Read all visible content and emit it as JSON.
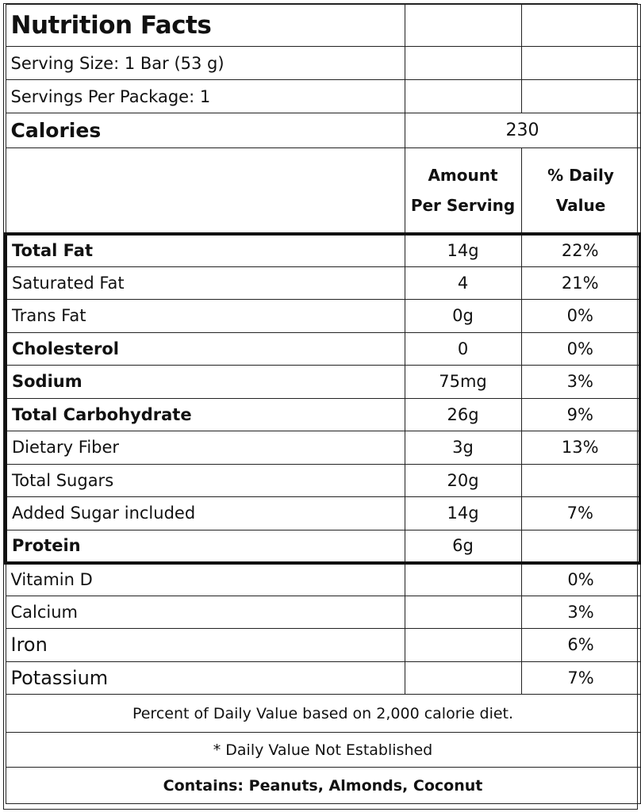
{
  "title": "Nutrition Facts",
  "serving_size": "Serving Size: 1 Bar (53 g)",
  "servings_per_package": "Servings Per Package: 1",
  "calories_label": "Calories",
  "calories_value": "230",
  "header": {
    "amount_line1": "Amount",
    "amount_line2": "Per Serving",
    "dv_line1": "% Daily",
    "dv_line2": "Value"
  },
  "nutrients": [
    {
      "name": "Total Fat",
      "amount": "14g",
      "dv": "22%",
      "bold": true
    },
    {
      "name": "Saturated Fat",
      "amount": "4",
      "dv": "21%",
      "bold": false
    },
    {
      "name": "Trans Fat",
      "amount": "0g",
      "dv": "0%",
      "bold": false
    },
    {
      "name": "Cholesterol",
      "amount": "0",
      "dv": "0%",
      "bold": true
    },
    {
      "name": "Sodium",
      "amount": "75mg",
      "dv": "3%",
      "bold": true
    },
    {
      "name": "Total Carbohydrate",
      "amount": "26g",
      "dv": "9%",
      "bold": true
    },
    {
      "name": "Dietary Fiber",
      "amount": "3g",
      "dv": "13%",
      "bold": false
    },
    {
      "name": "Total Sugars",
      "amount": "20g",
      "dv": "",
      "bold": false
    },
    {
      "name": "Added Sugar included",
      "amount": "14g",
      "dv": "7%",
      "bold": false
    },
    {
      "name": "Protein",
      "amount": "6g",
      "dv": "",
      "bold": true
    }
  ],
  "vitamins": [
    {
      "name": "Vitamin D",
      "amount": "",
      "dv": "0%"
    },
    {
      "name": "Calcium",
      "amount": "",
      "dv": "3%"
    },
    {
      "name": "Iron",
      "amount": "",
      "dv": "6%"
    },
    {
      "name": "Potassium",
      "amount": "",
      "dv": "7%"
    }
  ],
  "footer_note": "Percent of Daily Value based on 2,000 calorie diet.",
  "footnote": "* Daily Value Not Established",
  "contains": "Contains:  Peanuts, Almonds, Coconut"
}
